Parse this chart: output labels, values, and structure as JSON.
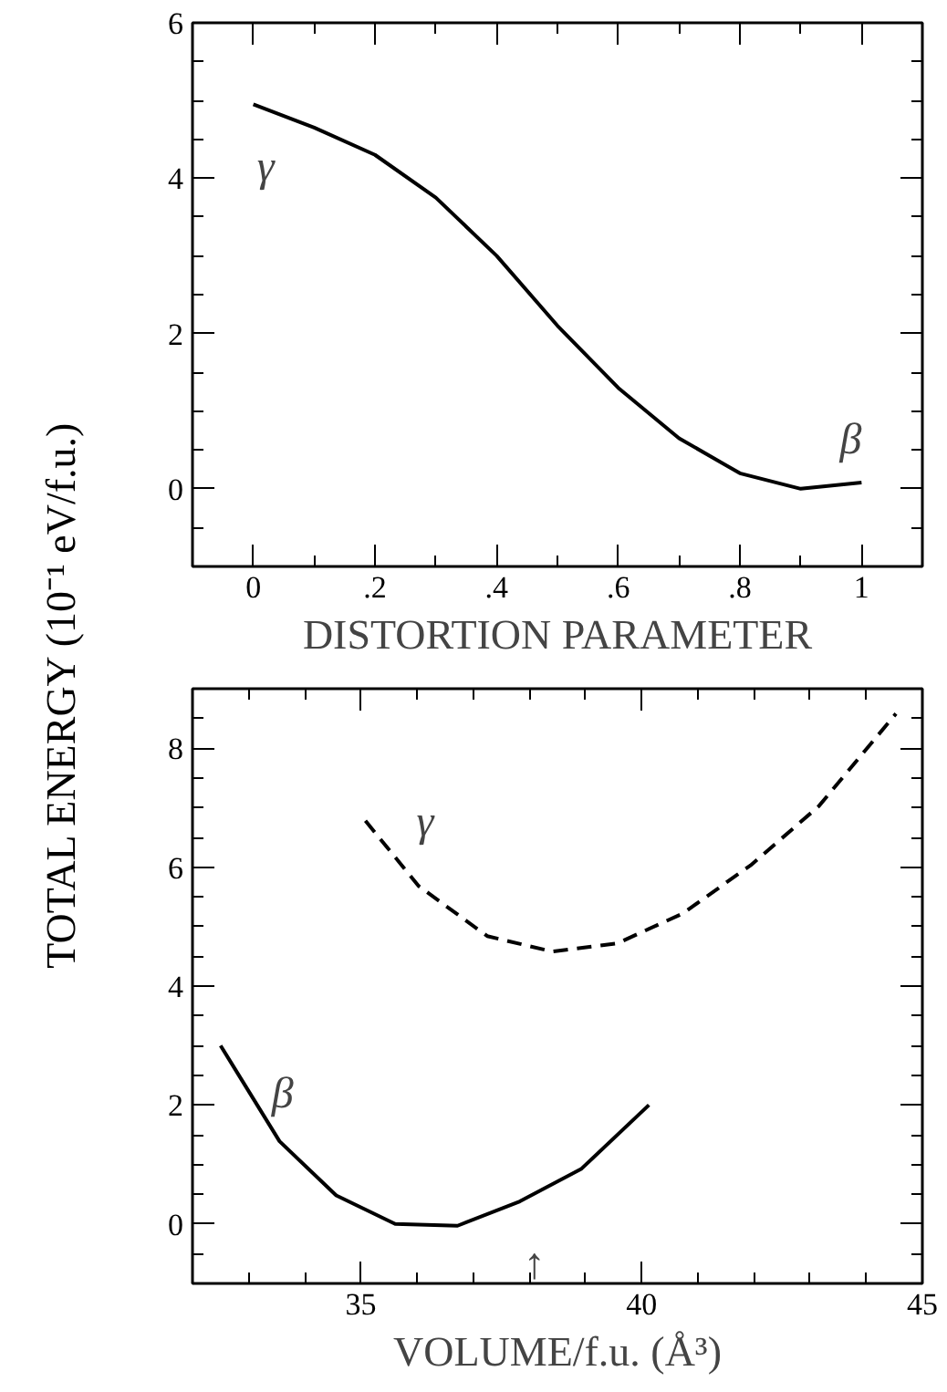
{
  "chart_data": [
    {
      "type": "line",
      "ylabel": "TOTAL ENERGY (10⁻¹ eV/f.u.)",
      "xlabel": "DISTORTION PARAMETER",
      "x": [
        0,
        0.1,
        0.2,
        0.3,
        0.4,
        0.5,
        0.6,
        0.7,
        0.8,
        0.9,
        1.0
      ],
      "series": [
        {
          "color": "#000000",
          "line_style": "solid",
          "values": [
            4.95,
            4.65,
            4.3,
            3.75,
            3.0,
            2.1,
            1.3,
            0.65,
            0.2,
            0.0,
            0.08
          ]
        }
      ],
      "xlim": [
        -0.1,
        1.1
      ],
      "xticks": [
        {
          "value": -0.1,
          "label": null
        },
        0,
        {
          "value": 0.1,
          "label": null
        },
        {
          "value": 0.2,
          "label": ".2"
        },
        {
          "value": 0.3,
          "label": null
        },
        {
          "value": 0.4,
          "label": ".4"
        },
        {
          "value": 0.5,
          "label": null
        },
        {
          "value": 0.6,
          "label": ".6"
        },
        {
          "value": 0.7,
          "label": null
        },
        {
          "value": 0.8,
          "label": ".8"
        },
        {
          "value": 0.9,
          "label": null
        },
        1,
        {
          "value": 1.1,
          "label": null
        }
      ],
      "ylim": [
        -1,
        6
      ],
      "yticks": [
        {
          "value": -0.5,
          "label": null
        },
        0,
        {
          "value": 0.5,
          "label": null
        },
        {
          "value": 1,
          "label": null
        },
        {
          "value": 1.5,
          "label": null
        },
        2,
        {
          "value": 2.5,
          "label": null
        },
        {
          "value": 3,
          "label": null
        },
        {
          "value": 3.5,
          "label": null
        },
        4,
        {
          "value": 4.5,
          "label": null
        },
        {
          "value": 5,
          "label": null
        },
        {
          "value": 5.5,
          "label": null
        },
        6
      ],
      "annotations": [
        {
          "text": "γ",
          "x": 0,
          "y": 4.95
        },
        {
          "text": "β",
          "x": 1.0,
          "y": 0.08
        }
      ],
      "grid": false,
      "marker": "none"
    },
    {
      "type": "line",
      "xlabel": "VOLUME/f.u. (Å³)",
      "series": [
        {
          "name": "β",
          "color": "#000000",
          "line_style": "solid",
          "x": [
            32.5,
            33.55,
            34.56,
            35.61,
            36.72,
            37.83,
            38.93,
            40.13
          ],
          "values": [
            3.0,
            1.39,
            0.48,
            0.0,
            -0.03,
            0.38,
            0.93,
            2.0
          ]
        },
        {
          "name": "γ",
          "color": "#000000",
          "line_style": "dashed",
          "x": [
            35.08,
            36.03,
            37.25,
            38.41,
            39.57,
            40.73,
            41.94,
            43.15,
            44.53
          ],
          "values": [
            6.78,
            5.68,
            4.84,
            4.58,
            4.72,
            5.22,
            6.03,
            7.02,
            8.58
          ]
        }
      ],
      "xlim": [
        32,
        45
      ],
      "xticks": [
        {
          "value": 33,
          "label": null
        },
        {
          "value": 34,
          "label": null
        },
        35,
        {
          "value": 36,
          "label": null
        },
        {
          "value": 37,
          "label": null
        },
        {
          "value": 38,
          "label": null
        },
        {
          "value": 39,
          "label": null
        },
        40,
        {
          "value": 41,
          "label": null
        },
        {
          "value": 42,
          "label": null
        },
        {
          "value": 43,
          "label": null
        },
        {
          "value": 44,
          "label": null
        },
        45
      ],
      "ylim": [
        -1,
        9
      ],
      "yticks": [
        {
          "value": -0.5,
          "label": null
        },
        0,
        {
          "value": 0.5,
          "label": null
        },
        {
          "value": 1,
          "label": null
        },
        {
          "value": 1.5,
          "label": null
        },
        2,
        {
          "value": 2.5,
          "label": null
        },
        {
          "value": 3,
          "label": null
        },
        {
          "value": 3.5,
          "label": null
        },
        4,
        {
          "value": 4.5,
          "label": null
        },
        {
          "value": 5,
          "label": null
        },
        {
          "value": 5.5,
          "label": null
        },
        6,
        {
          "value": 6.5,
          "label": null
        },
        {
          "value": 7,
          "label": null
        },
        {
          "value": 7.5,
          "label": null
        },
        8,
        {
          "value": 8.5,
          "label": null
        }
      ],
      "annotations": [
        {
          "text": "↑",
          "x": 37.83,
          "y": 0.38
        }
      ],
      "grid": false,
      "marker": "none"
    }
  ]
}
